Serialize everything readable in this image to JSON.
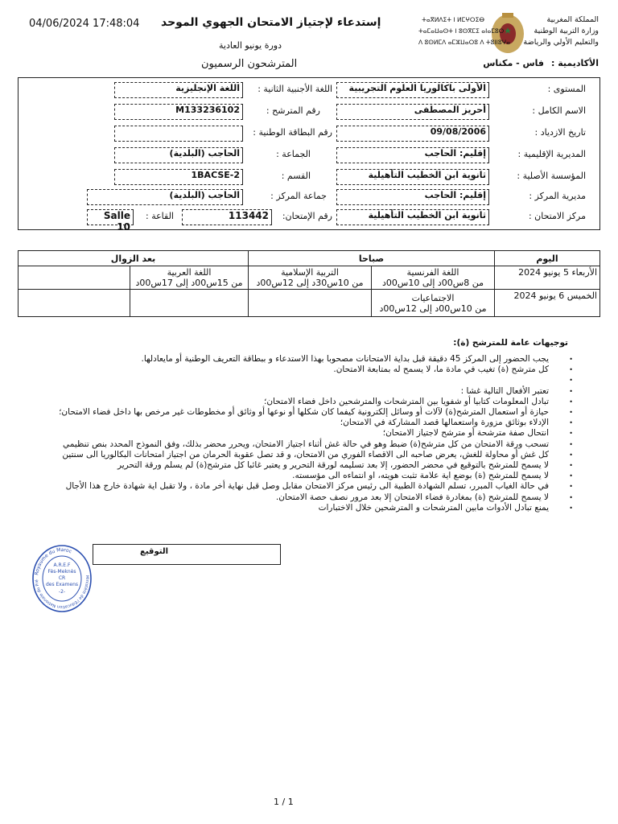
{
  "header": {
    "timestamp": "04/06/2024 17:48:04",
    "title": "إستدعاء لإجتياز الامتحان الجهوي الموحد",
    "session": "دورة يونيو العادية",
    "candidates_type": "المترشحون الرسميون",
    "ministry_lines": [
      "المملكة المغربية",
      "وزارة التربية الوطنية",
      "والتعليم الأولي والرياضة"
    ],
    "tifinagh_lines": [
      "ⵜⴰⴳⵍⴷⵉⵜ ⵏ ⵍⵎⵖⵔⵉⴱ",
      "ⵜⴰⵎⴰⵡⴰⵙⵜ ⵏ ⵓⵙⴳⵎⵉ ⴰⵏⴰⵎⵓⵔ",
      "ⴷ ⵓⵙⵍⵎⴷ ⴰⵎⵣⵡⴰⵔⵓ ⴷ ⵜⵓⵏⵏⵓⵖⴰ"
    ],
    "academy_label": "الأكاديمية :",
    "academy_value": "فاس - مكناس"
  },
  "info": {
    "level": {
      "label": "المستوى :",
      "value": "الأولى باكالوريا العلوم التجريبية"
    },
    "second_language": {
      "label": "اللغة الأجنبية الثانية :",
      "value": "اللغة الإنجليزية"
    },
    "full_name": {
      "label": "الاسم الكامل :",
      "value": "أحريز المصطفى"
    },
    "candidate_number": {
      "label": "رقم المترشح :",
      "value": "M133236102"
    },
    "birth_date": {
      "label": "تاريخ الازدياد :",
      "value": "09/08/2006"
    },
    "national_id": {
      "label": "رقم البطاقة الوطنية :",
      "value": ""
    },
    "provincial_directorate": {
      "label": "المديرية الإقليمية :",
      "value": "إقليم: الحاجب"
    },
    "commune": {
      "label": "الجماعة :",
      "value": "الحاجب (البلدية)"
    },
    "origin_school": {
      "label": "المؤسسة الأصلية :",
      "value": "ثانوية ابن الخطيب التأهيلية"
    },
    "class": {
      "label": "القسم :",
      "value": "1BACSE-2"
    },
    "center_directorate": {
      "label": "مديرية المركز :",
      "value": "إقليم: الحاجب"
    },
    "center_commune": {
      "label": "جماعة المركز :",
      "value": "الحاجب (البلدية)"
    },
    "exam_center": {
      "label": "مركز الامتحان :",
      "value": "ثانوية ابن الخطيب التأهيلية"
    },
    "exam_number": {
      "label": "رقم الإمتحان:",
      "value": "113442"
    },
    "room": {
      "label": "القاعة :",
      "value": "Salle 10"
    }
  },
  "schedule": {
    "headers": {
      "day": "اليوم",
      "morning": "صباحا",
      "afternoon": "بعد الزوال"
    },
    "rows": [
      {
        "day": "الأربعاء 5 يونيو 2024",
        "cells": [
          {
            "subject": "اللغة الفرنسية",
            "time": "من 8س00د إلى 10س00د"
          },
          {
            "subject": "التربية الإسلامية",
            "time": "من 10س30د إلى 12س00د"
          },
          {
            "subject": "اللغة العربية",
            "time": "من 15س00د إلى 17س00د"
          },
          {
            "subject": "",
            "time": ""
          }
        ]
      },
      {
        "day": "الخميس 6 يونيو 2024",
        "cells": [
          {
            "subject": "الاجتماعيات",
            "time": "من 10س00د إلى 12س00د"
          },
          {
            "subject": "",
            "time": ""
          },
          {
            "subject": "",
            "time": ""
          },
          {
            "subject": "",
            "time": ""
          }
        ]
      }
    ]
  },
  "instructions": {
    "title": "توجيهات عامة للمترشح (ة):",
    "items": [
      "يجب الحضور إلى المركز 45 دقيقة قبل بداية الامتحانات مصحوبا بهذا الاستدعاء و ببطاقة التعريف الوطنية أو مايعادلها.",
      "كل مترشح (ة) تغيب في مادة ما، لا يسمح له بمتابعة الامتحان.",
      "",
      "تعتبر الأفعال التالية غشا :",
      "  تبادل المعلومات كتابيا أو شفويا بين المترشحات والمترشحين داخل فضاء الامتحان؛",
      "  حيازة أو استعمال  المترشح(ة) لآلات أو وسائل إلكترونية كيفما كان شكلها أو نوعها أو وثائق أو مخطوطات غير مرخص بها داخل فضاء الامتحان؛",
      "  الإدلاء بوثائق مزورة واستعمالها قصد المشاركة في الامتحان؛",
      "  انتحال صفة مترشحة أو مترشح لاجتياز الامتحان؛",
      "تسحب ورقة الامتحان من كل مترشح(ة) ضبط وهو في حالة غش أثناء اجتياز الامتحان، ويحرر محضر بذلك، وفق النموذج المحدد بنص تنظيمي",
      "كل غش أو محاولة للغش، يعرض صاحبه الى الاقصاء الفوري من الامتحان، و قد تصل عقوبة الحرمان من اجتياز امتحانات البكالوريا الى سنتين",
      "لا يسمح للمترشح بالتوقيع في محضر الحضور، إلا بعد تسليمه لورقة التحرير و يعتبر  غائبا كل مترشح(ة) لم يسلم ورقة التحرير",
      " لا يسمح للمترشح (ة) بوضع اية علامة تثبت هويته، او انتماءه الى مؤسسته.",
      "في حالة الغياب المبرر، تسلم الشهادة الطبية الى رئيس مركز الامتحان مقابل وصل قبل نهاية أخر مادة ، ولا تقبل اية شهادة خارج هذا الأجال",
      " لا يسمح للمترشح (ة) بمغادرة فضاء الامتحان إلا بعد مرور نصف حصة الامتحان.",
      "يمنع تبادل الأدوات مابين المترشحات و المترشحين خلال الاختبارات"
    ]
  },
  "signature": {
    "label": "التوقيع"
  },
  "stamp": {
    "lines": [
      "Royaume du Maroc",
      "A.R.E.F",
      "Fès-Meknès",
      "CR",
      "des Examens",
      "-2-",
      "Ministère de l'Education Nationale du Préscolaire et des Sports"
    ]
  },
  "footer": {
    "page": "1 / 1"
  },
  "colors": {
    "stamp": "#2b4fb0",
    "text": "#111111"
  }
}
